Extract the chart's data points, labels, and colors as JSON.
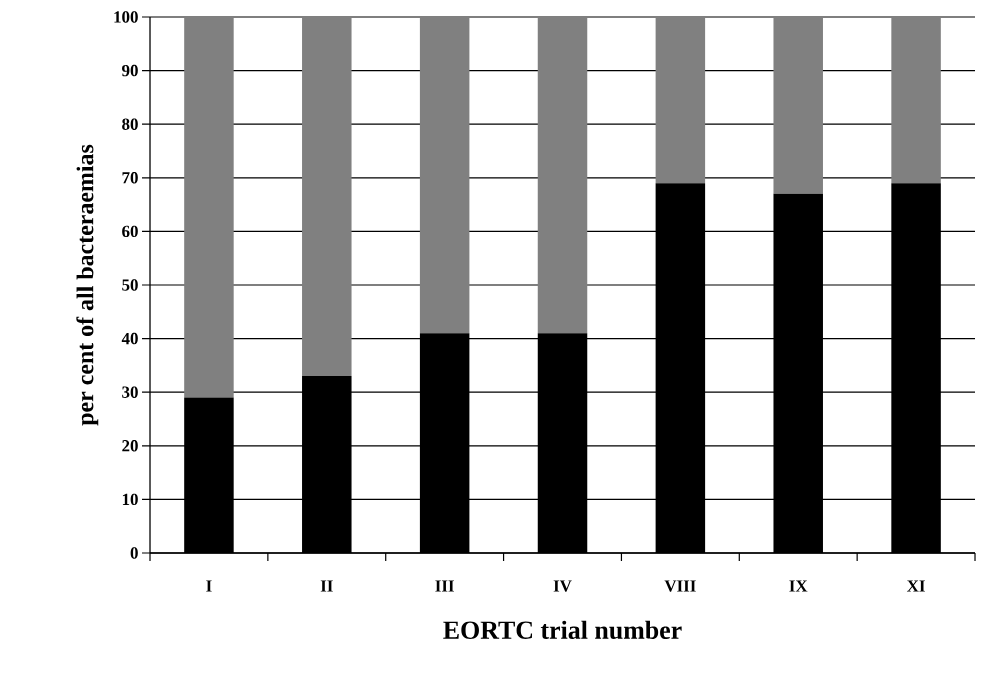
{
  "chart_data": {
    "type": "bar",
    "stacked": true,
    "xlabel": "EORTC trial number",
    "ylabel": "per cent of all  bacteraemias",
    "categories": [
      "I",
      "II",
      "III",
      "IV",
      "VIII",
      "IX",
      "XI"
    ],
    "series": [
      {
        "color": "#000000",
        "values": [
          29,
          33,
          41,
          41,
          69,
          67,
          69
        ]
      },
      {
        "color": "#808080",
        "values": [
          71,
          67,
          59,
          59,
          31,
          33,
          31
        ]
      }
    ],
    "ylim": [
      0,
      100
    ],
    "yticks": [
      0,
      10,
      20,
      30,
      40,
      50,
      60,
      70,
      80,
      90,
      100
    ],
    "grid": "y"
  }
}
